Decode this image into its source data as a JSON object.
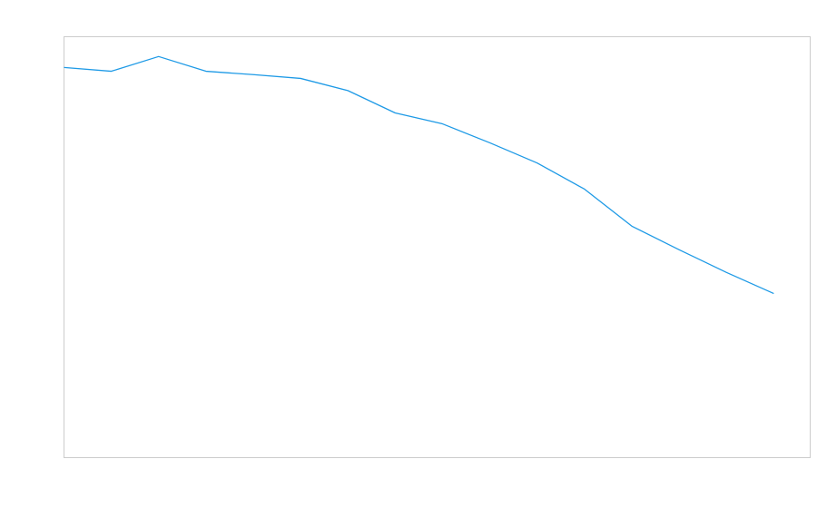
{
  "chart_data": {
    "type": "line",
    "x": [
      0,
      1,
      2,
      3,
      4,
      5,
      6,
      7,
      8,
      9,
      10,
      11,
      12,
      13,
      14,
      15
    ],
    "xlim": [
      0,
      15.77
    ],
    "ylim": [
      0,
      100
    ],
    "series": [
      {
        "color": "#1e9ae6",
        "values": [
          92.7,
          91.8,
          95.3,
          91.8,
          91.0,
          90.1,
          87.2,
          81.9,
          79.3,
          74.8,
          70.0,
          63.8,
          55.0,
          49.4,
          44.0,
          39.0
        ]
      }
    ],
    "frame_color": "#cccccc"
  }
}
